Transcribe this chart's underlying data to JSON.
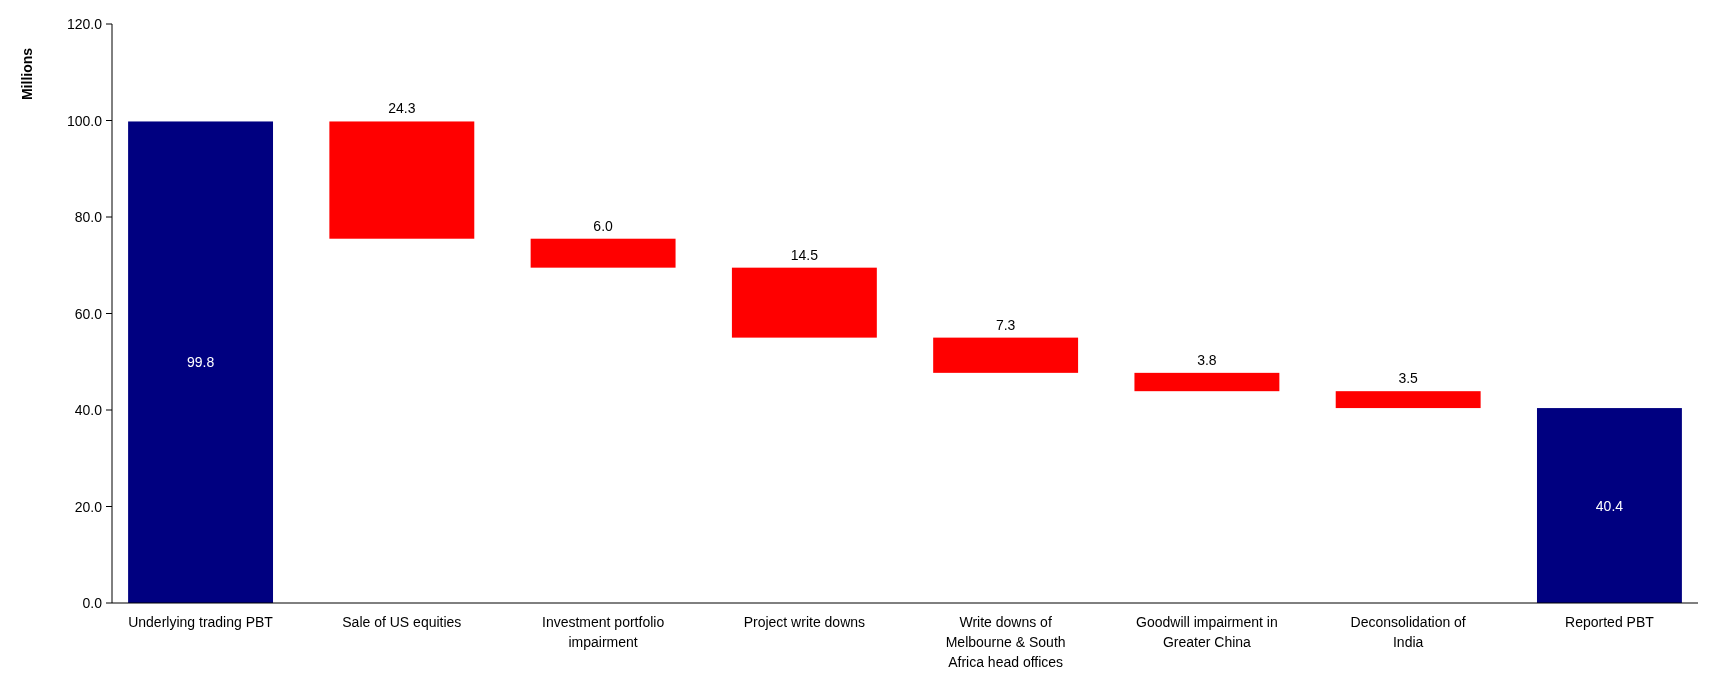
{
  "chart_data": {
    "type": "bar",
    "ylabel": "Millions",
    "categories": [
      "Underlying trading PBT",
      "Sale of US equities",
      "Investment portfolio impairment",
      "Project write downs",
      "Write downs of Melbourne & South Africa head offices",
      "Goodwill impairment in Greater China",
      "Deconsolidation of India",
      "Reported PBT"
    ],
    "values": [
      99.8,
      24.3,
      6.0,
      14.5,
      7.3,
      3.8,
      3.5,
      40.4
    ],
    "base": [
      0,
      75.5,
      69.5,
      55.0,
      47.7,
      43.9,
      40.4,
      0
    ],
    "colors": [
      "#000080",
      "#ff0000",
      "#ff0000",
      "#ff0000",
      "#ff0000",
      "#ff0000",
      "#ff0000",
      "#000080"
    ],
    "value_labels": [
      "99.8",
      "24.3",
      "6.0",
      "14.5",
      "7.3",
      "3.8",
      "3.5",
      "40.4"
    ],
    "ylim": [
      0,
      120
    ],
    "yticks": [
      {
        "value": 0,
        "label": "0.0"
      },
      {
        "value": 20,
        "label": "20.0"
      },
      {
        "value": 40,
        "label": "40.0"
      },
      {
        "value": 60,
        "label": "60.0"
      },
      {
        "value": 80,
        "label": "80.0"
      },
      {
        "value": 100,
        "label": "100.0"
      },
      {
        "value": 120,
        "label": "120.0"
      }
    ],
    "grid": false
  }
}
